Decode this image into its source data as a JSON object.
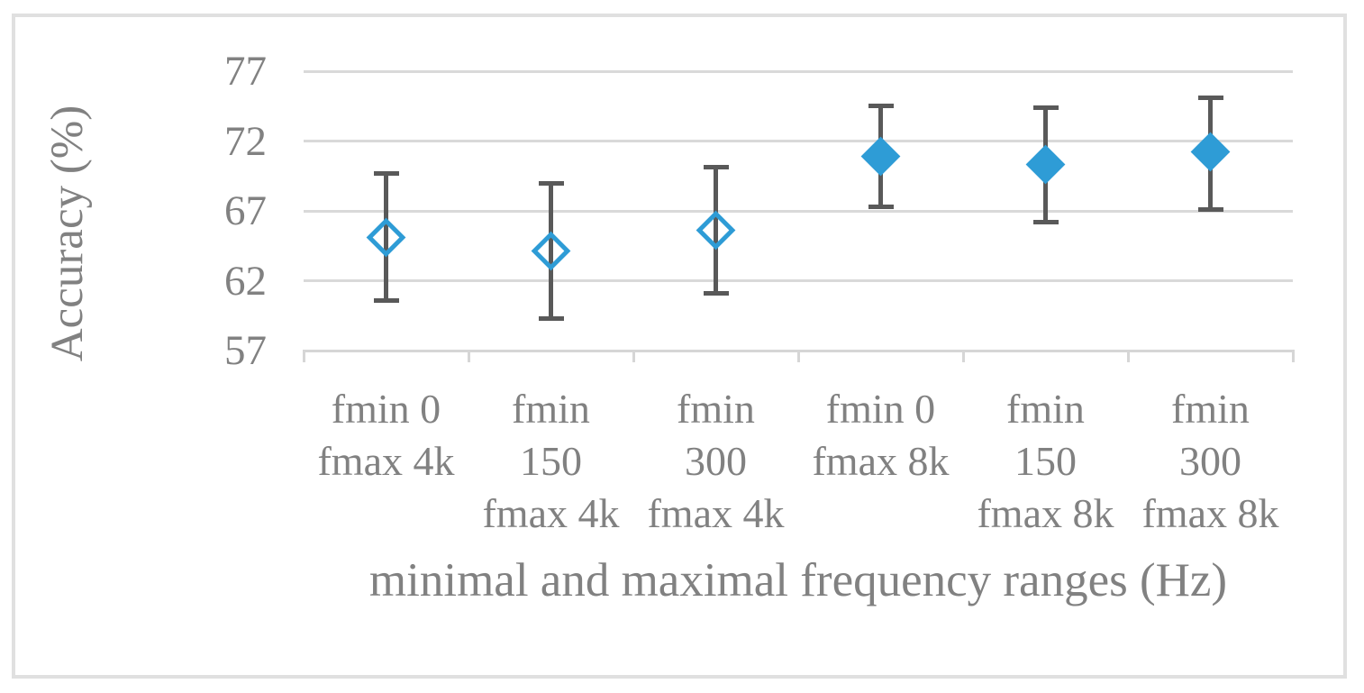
{
  "chart_data": {
    "type": "scatter",
    "title": "",
    "xlabel": "minimal and maximal frequency ranges (Hz)",
    "ylabel": "Accuracy (%)",
    "ylim": [
      57,
      77
    ],
    "yticks": [
      77,
      72,
      67,
      62,
      57
    ],
    "grid": true,
    "legend": "none",
    "categories": [
      [
        "fmin 0",
        "fmax 4k"
      ],
      [
        "fmin",
        "150",
        "fmax 4k"
      ],
      [
        "fmin",
        "300",
        "fmax 4k"
      ],
      [
        "fmin 0",
        "fmax 8k"
      ],
      [
        "fmin",
        "150",
        "fmax 8k"
      ],
      [
        "fmin",
        "300",
        "fmax 8k"
      ]
    ],
    "points": [
      {
        "label": "fmin 0 fmax 4k",
        "value": 65.1,
        "err_low": 60.6,
        "err_high": 69.7,
        "marker": "open-diamond"
      },
      {
        "label": "fmin 150 fmax 4k",
        "value": 64.1,
        "err_low": 59.3,
        "err_high": 69.0,
        "marker": "open-diamond"
      },
      {
        "label": "fmin 300 fmax 4k",
        "value": 65.6,
        "err_low": 61.1,
        "err_high": 70.1,
        "marker": "open-diamond"
      },
      {
        "label": "fmin 0 fmax 8k",
        "value": 70.9,
        "err_low": 67.3,
        "err_high": 74.5,
        "marker": "filled-diamond"
      },
      {
        "label": "fmin 150 fmax 8k",
        "value": 70.3,
        "err_low": 66.2,
        "err_high": 74.4,
        "marker": "filled-diamond"
      },
      {
        "label": "fmin 300 fmax 8k",
        "value": 71.2,
        "err_low": 67.1,
        "err_high": 75.1,
        "marker": "filled-diamond"
      }
    ],
    "colors": {
      "marker_blue": "#2e9cd6",
      "error_bar_gray": "#595959",
      "gridline_gray": "#d9d9d9",
      "axis_gray": "#d6d6d6",
      "text_gray": "#818181",
      "frame_border_gray": "#e0e0e0"
    }
  }
}
